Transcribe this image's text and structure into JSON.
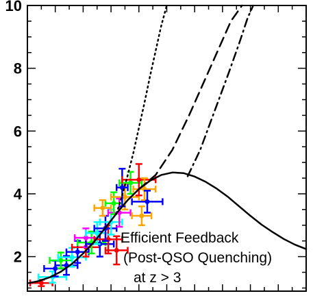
{
  "chart_data": {
    "type": "line",
    "title": "",
    "xlabel": "",
    "ylabel": "",
    "xlim": [
      0,
      10
    ],
    "ylim": [
      0.9,
      10
    ],
    "yticks": [
      2,
      4,
      6,
      8,
      10
    ],
    "annotation": {
      "line1": "Efficient Feedback",
      "line2": "(Post-QSO Quenching)",
      "line3": "at z > 3"
    },
    "series": [
      {
        "style": "solid",
        "color": "#000000",
        "x": [
          0.0,
          0.4,
          0.8,
          1.2,
          1.6,
          2.0,
          2.4,
          2.8,
          3.2,
          3.6,
          4.0,
          4.4,
          4.8,
          5.2,
          5.6,
          6.0,
          6.4,
          6.8,
          7.2,
          7.6,
          8.0,
          8.4,
          8.8,
          9.2,
          9.6,
          10.0
        ],
        "y": [
          1.15,
          1.22,
          1.34,
          1.52,
          1.77,
          2.1,
          2.48,
          2.92,
          3.38,
          3.8,
          4.15,
          4.42,
          4.6,
          4.68,
          4.66,
          4.55,
          4.38,
          4.16,
          3.9,
          3.6,
          3.3,
          3.02,
          2.78,
          2.56,
          2.38,
          2.24
        ]
      },
      {
        "style": "dotted",
        "color": "#000000",
        "x": [
          3.2,
          3.4,
          3.6,
          3.8,
          4.0,
          4.2,
          4.4,
          4.6,
          4.8,
          5.0
        ],
        "y": [
          3.38,
          3.95,
          4.6,
          5.3,
          6.1,
          6.9,
          7.75,
          8.55,
          9.35,
          10.0
        ]
      },
      {
        "style": "dashed",
        "color": "#000000",
        "x": [
          4.0,
          4.6,
          5.2,
          5.8,
          6.3,
          6.8,
          7.3,
          7.7
        ],
        "y": [
          4.15,
          4.6,
          5.4,
          6.5,
          7.5,
          8.5,
          9.5,
          10.0
        ]
      },
      {
        "style": "dashdot",
        "color": "#000000",
        "x": [
          5.75,
          6.2,
          6.7,
          7.2,
          7.6,
          7.9,
          8.1
        ],
        "y": [
          4.56,
          5.4,
          6.6,
          7.8,
          8.8,
          9.6,
          10.0
        ]
      }
    ],
    "errorbars": [
      {
        "x": 0.5,
        "y": 1.16,
        "xerr": 0.4,
        "yerr": 0.1,
        "color": "#ff0000"
      },
      {
        "x": 0.9,
        "y": 1.35,
        "xerr": 0.5,
        "yerr": 0.18,
        "color": "#00ffff"
      },
      {
        "x": 1.0,
        "y": 1.62,
        "xerr": 0.4,
        "yerr": 0.25,
        "color": "#0000ff"
      },
      {
        "x": 1.4,
        "y": 1.72,
        "xerr": 0.4,
        "yerr": 0.3,
        "color": "#0000ff"
      },
      {
        "x": 1.2,
        "y": 1.88,
        "xerr": 0.4,
        "yerr": 0.25,
        "color": "#00ff00"
      },
      {
        "x": 1.6,
        "y": 1.98,
        "xerr": 0.5,
        "yerr": 0.3,
        "color": "#00ffff"
      },
      {
        "x": 1.8,
        "y": 2.15,
        "xerr": 0.4,
        "yerr": 0.35,
        "color": "#0000ff"
      },
      {
        "x": 2.1,
        "y": 2.3,
        "xerr": 0.5,
        "yerr": 0.3,
        "color": "#ff0000"
      },
      {
        "x": 2.3,
        "y": 2.45,
        "xerr": 0.5,
        "yerr": 0.35,
        "color": "#00ff00"
      },
      {
        "x": 2.1,
        "y": 2.6,
        "xerr": 0.4,
        "yerr": 0.3,
        "color": "#ff00ff"
      },
      {
        "x": 2.6,
        "y": 2.4,
        "xerr": 0.5,
        "yerr": 0.4,
        "color": "#0000ff"
      },
      {
        "x": 2.5,
        "y": 2.75,
        "xerr": 0.4,
        "yerr": 0.35,
        "color": "#00ffff"
      },
      {
        "x": 2.9,
        "y": 2.55,
        "xerr": 0.5,
        "yerr": 0.45,
        "color": "#ff0000"
      },
      {
        "x": 2.8,
        "y": 2.9,
        "xerr": 0.4,
        "yerr": 0.4,
        "color": "#0000ff"
      },
      {
        "x": 3.2,
        "y": 2.2,
        "xerr": 0.4,
        "yerr": 0.45,
        "color": "#ff0000"
      },
      {
        "x": 3.0,
        "y": 3.1,
        "xerr": 0.4,
        "yerr": 0.4,
        "color": "#00ffff"
      },
      {
        "x": 3.3,
        "y": 3.4,
        "xerr": 0.4,
        "yerr": 0.45,
        "color": "#ff00ff"
      },
      {
        "x": 3.1,
        "y": 3.7,
        "xerr": 0.3,
        "yerr": 0.35,
        "color": "#00ff00"
      },
      {
        "x": 3.5,
        "y": 3.9,
        "xerr": 0.5,
        "yerr": 0.4,
        "color": "#ffa500"
      },
      {
        "x": 3.4,
        "y": 4.2,
        "xerr": 0.2,
        "yerr": 0.6,
        "color": "#0000ff"
      },
      {
        "x": 3.7,
        "y": 4.35,
        "xerr": 0.4,
        "yerr": 0.35,
        "color": "#00ff00"
      },
      {
        "x": 4.0,
        "y": 4.45,
        "xerr": 0.6,
        "yerr": 0.5,
        "color": "#ff0000"
      },
      {
        "x": 4.2,
        "y": 4.15,
        "xerr": 0.4,
        "yerr": 0.35,
        "color": "#ffa500"
      },
      {
        "x": 4.3,
        "y": 3.75,
        "xerr": 0.55,
        "yerr": 0.35,
        "color": "#0000ff"
      },
      {
        "x": 4.1,
        "y": 3.3,
        "xerr": 0.35,
        "yerr": 0.3,
        "color": "#ffa500"
      },
      {
        "x": 2.7,
        "y": 3.55,
        "xerr": 0.3,
        "yerr": 0.25,
        "color": "#ffa500"
      }
    ]
  }
}
